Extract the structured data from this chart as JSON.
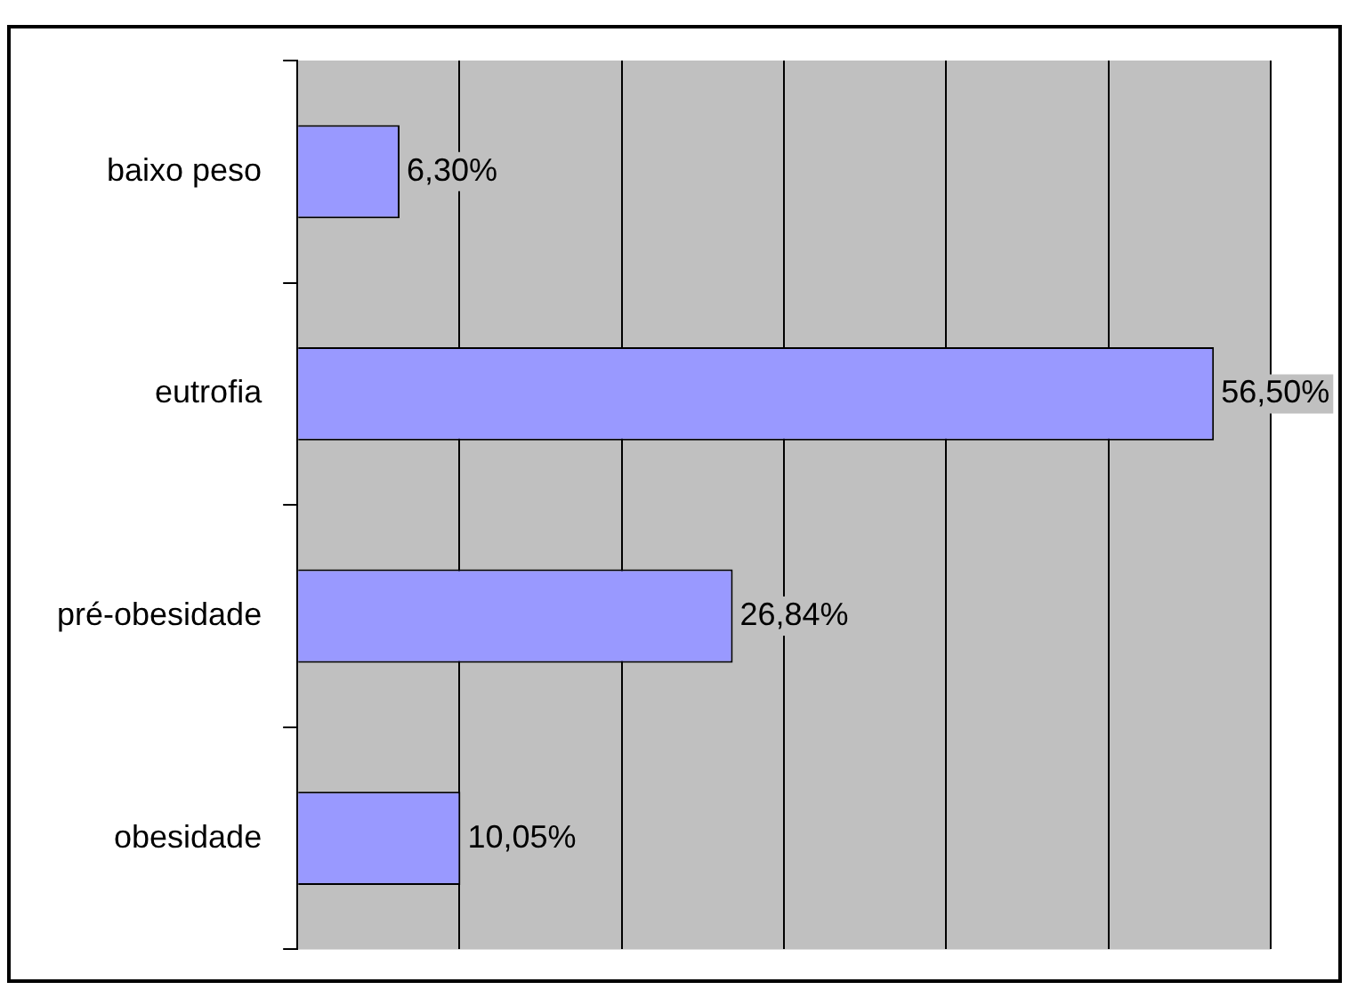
{
  "chart_data": {
    "type": "bar",
    "orientation": "horizontal",
    "categories": [
      "baixo peso",
      "eutrofia",
      "pré-obesidade",
      "obesidade"
    ],
    "values": [
      6.3,
      56.5,
      26.84,
      10.05
    ],
    "value_labels": [
      "6,30%",
      "56,50%",
      "26,84%",
      "10,05%"
    ],
    "color": "#9999ff",
    "xlim": [
      0,
      60
    ],
    "xticks": [
      {
        "value": 0,
        "label": null
      },
      {
        "value": 10,
        "label": null
      },
      {
        "value": 20,
        "label": null
      },
      {
        "value": 30,
        "label": null
      },
      {
        "value": 40,
        "label": null
      },
      {
        "value": 50,
        "label": null
      },
      {
        "value": 60,
        "label": null
      }
    ],
    "tick_labels": "y",
    "grid": "x",
    "legend": false
  }
}
